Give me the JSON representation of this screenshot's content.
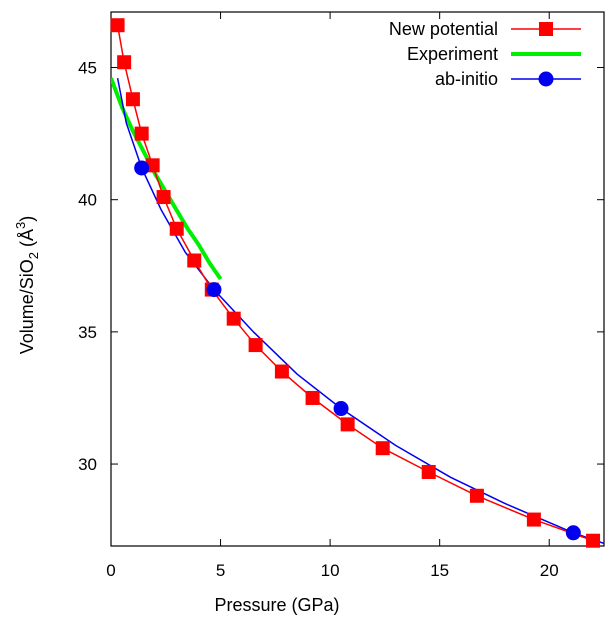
{
  "chart_data": {
    "type": "line",
    "xlabel": "Pressure (GPa)",
    "ylabel": {
      "prefix": "Volume/SiO",
      "sub": "2",
      "unit_open": " (Å",
      "sup": "3",
      "unit_close": ")"
    },
    "xlim": [
      0,
      22.5
    ],
    "ylim": [
      26.9,
      47.1
    ],
    "xticks": [
      0,
      5,
      10,
      15,
      20
    ],
    "yticks": [
      30,
      35,
      40,
      45
    ],
    "legend_position": "top-right",
    "series": [
      {
        "name": "New potential",
        "color": "#ff0000",
        "marker": "square",
        "x": [
          0.3,
          0.6,
          1.0,
          1.4,
          1.9,
          2.4,
          3.0,
          3.8,
          4.6,
          5.6,
          6.6,
          7.8,
          9.2,
          10.8,
          12.4,
          14.5,
          16.7,
          19.3,
          22.0
        ],
        "y": [
          46.6,
          45.2,
          43.8,
          42.5,
          41.3,
          40.1,
          38.9,
          37.7,
          36.6,
          35.5,
          34.5,
          33.5,
          32.5,
          31.5,
          30.6,
          29.7,
          28.8,
          27.9,
          27.1
        ]
      },
      {
        "name": "Experiment",
        "color": "#00ee00",
        "marker": "none",
        "x": [
          0.0,
          0.5,
          1.0,
          1.5,
          2.0,
          2.5,
          3.0,
          3.5,
          4.0,
          4.5,
          5.0
        ],
        "y": [
          44.6,
          43.5,
          42.6,
          41.8,
          41.0,
          40.3,
          39.6,
          38.9,
          38.3,
          37.6,
          37.0
        ]
      },
      {
        "name": "ab-initio",
        "color": "#0000ee",
        "marker": "circle",
        "x": [
          1.4,
          4.7,
          10.5,
          21.1
        ],
        "y": [
          41.2,
          36.6,
          32.1,
          27.4
        ],
        "curve_x": [
          0.3,
          0.7,
          1.4,
          2.3,
          3.4,
          4.7,
          6.5,
          8.5,
          10.5,
          13.0,
          15.5,
          18.0,
          21.1,
          22.5
        ],
        "curve_y": [
          44.6,
          42.9,
          41.2,
          39.6,
          38.0,
          36.6,
          35.0,
          33.4,
          32.1,
          30.7,
          29.5,
          28.5,
          27.4,
          27.0
        ]
      }
    ]
  }
}
